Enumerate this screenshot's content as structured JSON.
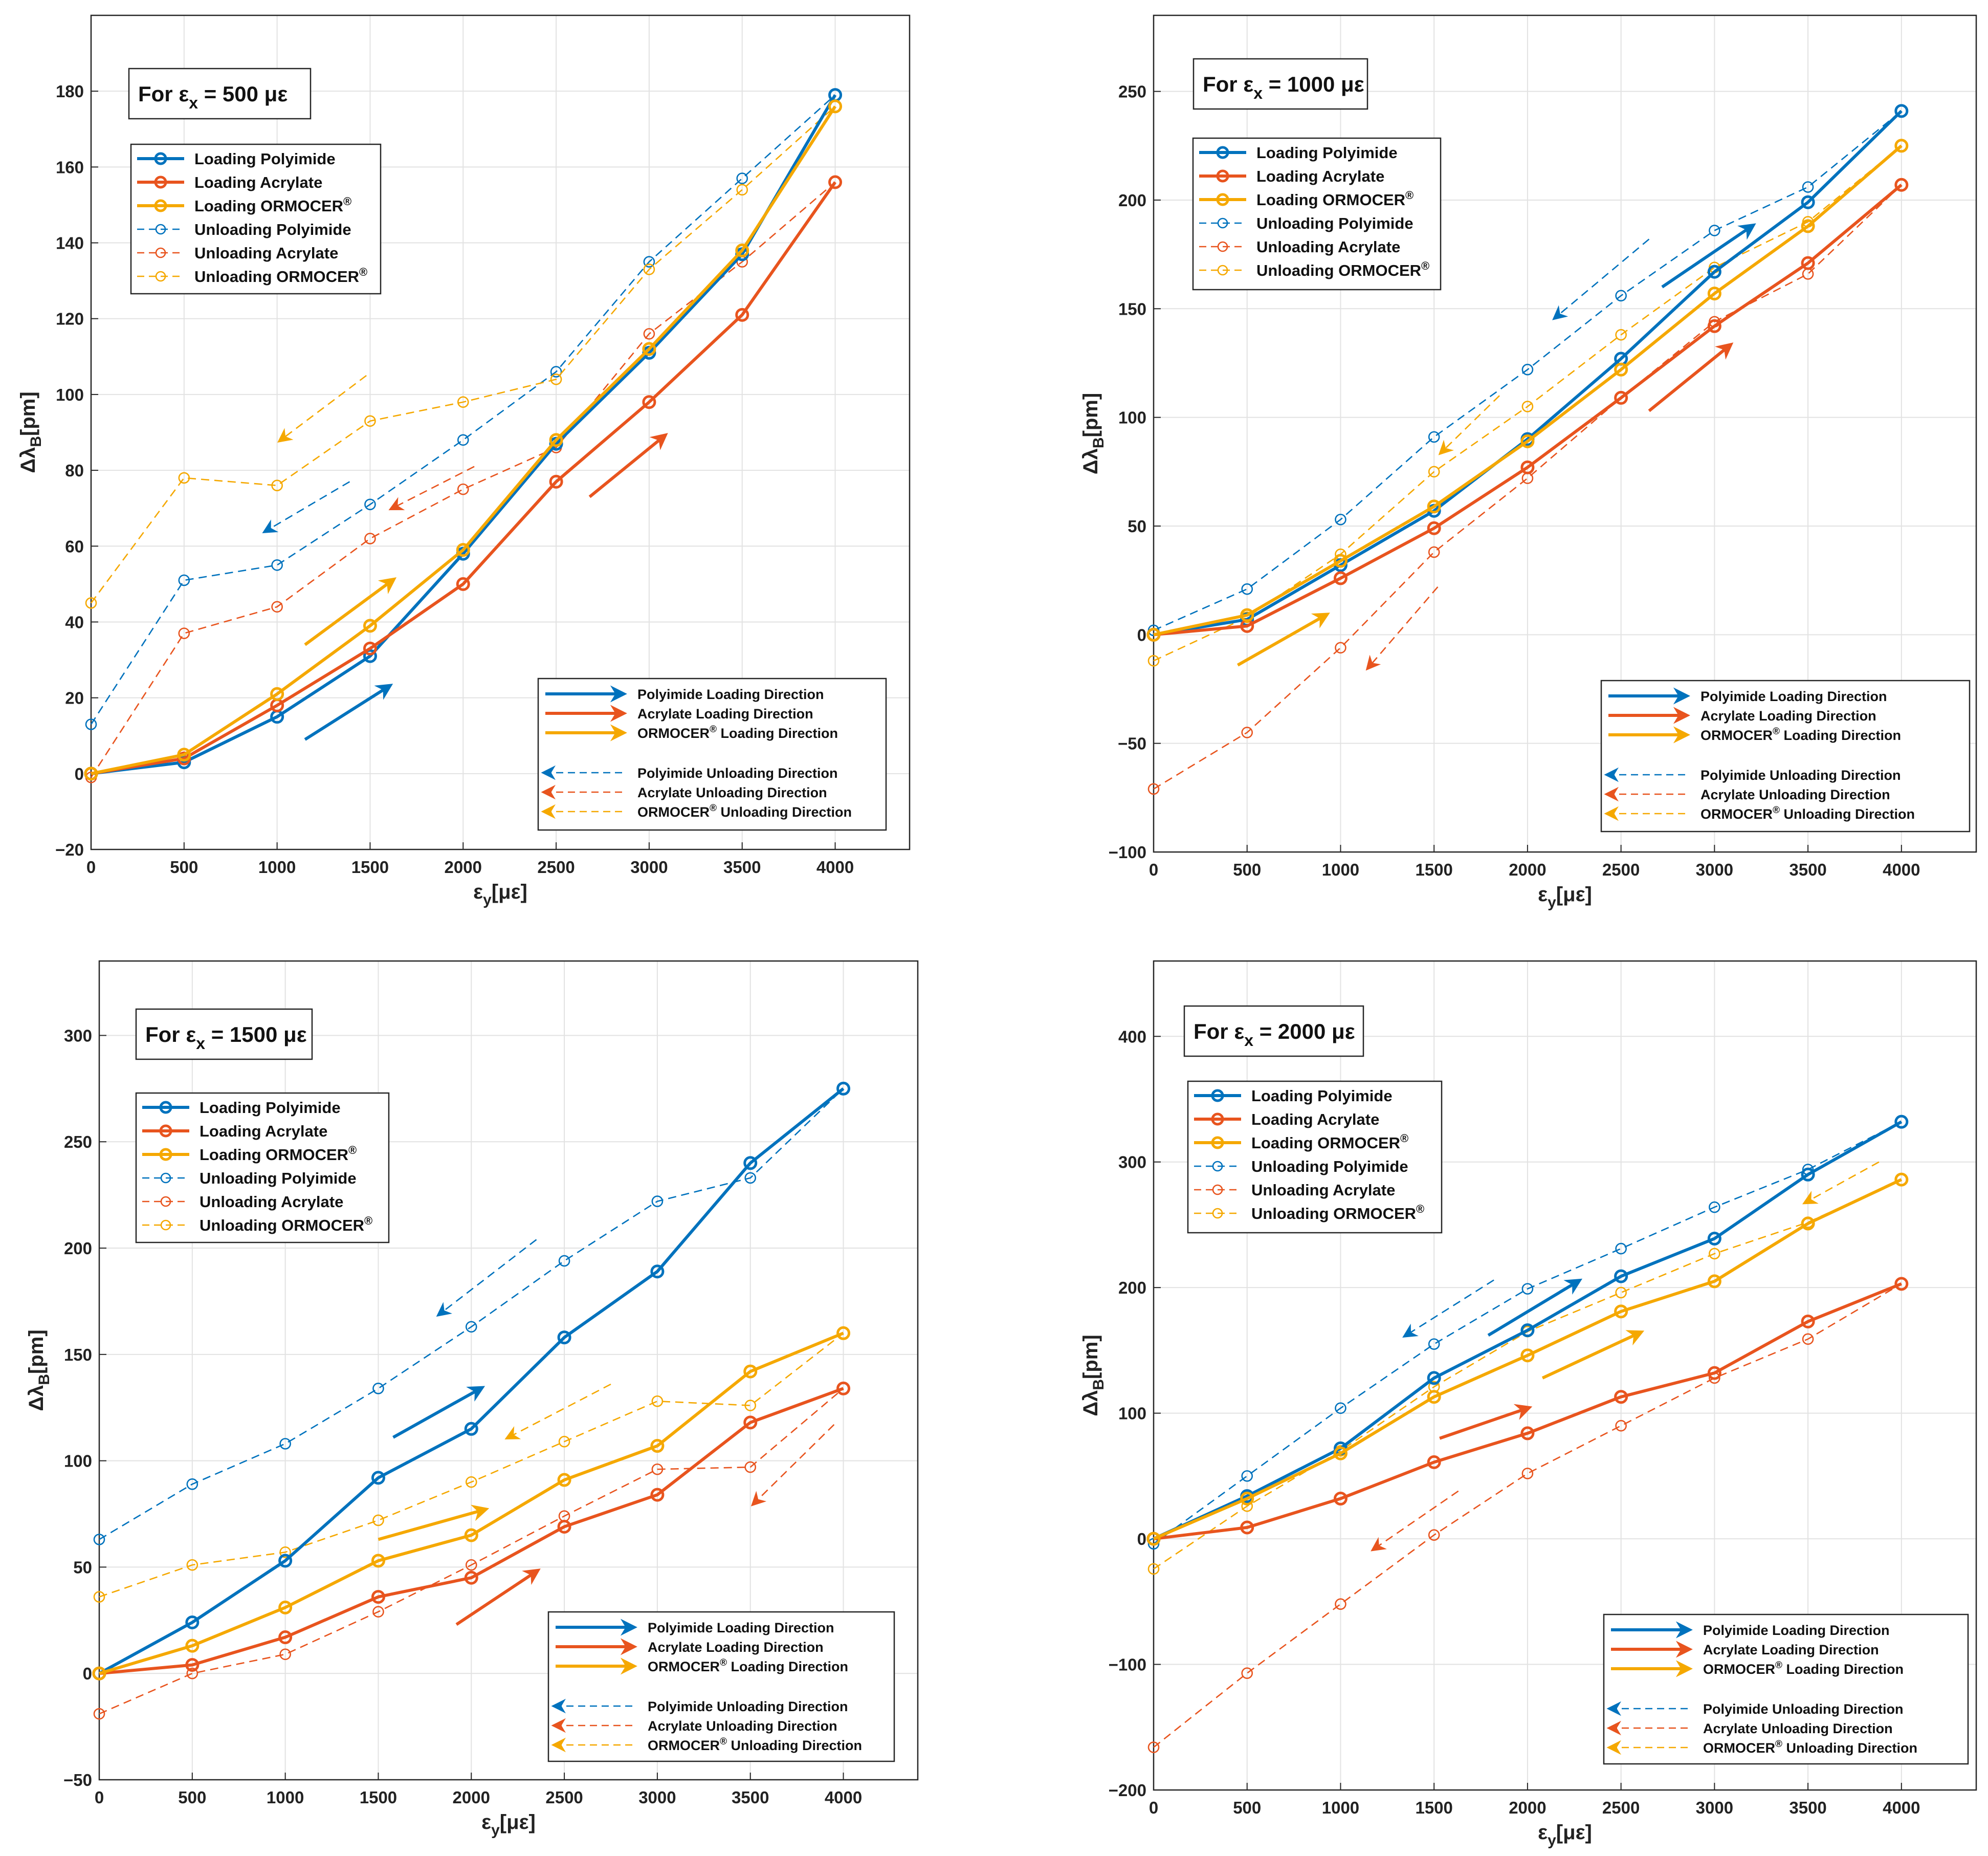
{
  "figure_caption": "",
  "colors": {
    "polyimide": "#0072BD",
    "acrylate": "#E8541E",
    "ormocer": "#F5A800",
    "grid": "#e2e2e2",
    "axis": "#262626"
  },
  "legend_labels": [
    "Loading Polyimide",
    "Loading Acrylate",
    "Loading ORMOCER",
    "Unloading Polyimide",
    "Unloading Acrylate",
    "Unloading ORMOCER"
  ],
  "direction_labels": [
    "Polyimide Loading Direction",
    "Acrylate Loading Direction",
    "ORMOCER Loading Direction",
    "Polyimide Unloading Direction",
    "Acrylate Unloading Direction",
    "ORMOCER Unloading Direction"
  ],
  "registered_mark": "®",
  "chart_data": [
    {
      "type": "line",
      "title_prefix": "For ε",
      "title_sub": "x",
      "title_suffix": " = 500 με",
      "xlabel_main": "ε",
      "xlabel_sub": "y",
      "xlabel_unit": "[με]",
      "ylabel_main": "Δλ",
      "ylabel_sub": "B",
      "ylabel_unit": "[pm]",
      "x": [
        0,
        500,
        1000,
        1500,
        2000,
        2500,
        3000,
        3500,
        4000
      ],
      "xlim": [
        0,
        4400
      ],
      "ylim": [
        -20,
        200
      ],
      "xticks": [
        0,
        500,
        1000,
        1500,
        2000,
        2500,
        3000,
        3500,
        4000
      ],
      "yticks": [
        -20,
        0,
        20,
        40,
        60,
        80,
        100,
        120,
        140,
        160,
        180
      ],
      "ytick_labels": [
        "−20",
        "0",
        "20",
        "40",
        "60",
        "80",
        "100",
        "120",
        "140",
        "160",
        "180"
      ],
      "grid": true,
      "series": [
        {
          "name": "Loading Polyimide",
          "values": [
            0,
            3,
            15,
            31,
            58,
            87,
            111,
            137,
            179
          ]
        },
        {
          "name": "Loading Acrylate",
          "values": [
            0,
            4,
            18,
            33,
            50,
            77,
            98,
            121,
            156
          ]
        },
        {
          "name": "Loading ORMOCER",
          "values": [
            0,
            5,
            21,
            39,
            59,
            88,
            112,
            138,
            176
          ]
        },
        {
          "name": "Unloading Polyimide",
          "values": [
            13,
            51,
            55,
            71,
            88,
            106,
            135,
            157,
            179
          ]
        },
        {
          "name": "Unloading Acrylate",
          "values": [
            -1,
            37,
            44,
            62,
            75,
            86,
            116,
            135,
            156
          ]
        },
        {
          "name": "Unloading ORMOCER",
          "values": [
            45,
            78,
            76,
            93,
            98,
            104,
            133,
            154,
            176
          ]
        }
      ],
      "direction_arrows": [
        {
          "series": "polyimide",
          "kind": "loading",
          "from": [
            1150,
            9
          ],
          "to": [
            1600,
            23
          ]
        },
        {
          "series": "acrylate",
          "kind": "loading",
          "from": [
            2680,
            73
          ],
          "to": [
            3080,
            89
          ]
        },
        {
          "series": "ormocer",
          "kind": "loading",
          "from": [
            1150,
            34
          ],
          "to": [
            1620,
            51
          ]
        },
        {
          "series": "polyimide",
          "kind": "unloading",
          "from": [
            1390,
            77
          ],
          "to": [
            940,
            64
          ]
        },
        {
          "series": "acrylate",
          "kind": "unloading",
          "from": [
            2060,
            81
          ],
          "to": [
            1620,
            70
          ]
        },
        {
          "series": "ormocer",
          "kind": "unloading",
          "from": [
            1480,
            105
          ],
          "to": [
            1020,
            88
          ]
        }
      ]
    },
    {
      "type": "line",
      "title_prefix": "For ε",
      "title_sub": "x",
      "title_suffix": " = 1000 με",
      "xlabel_main": "ε",
      "xlabel_sub": "y",
      "xlabel_unit": "[με]",
      "ylabel_main": "Δλ",
      "ylabel_sub": "B",
      "ylabel_unit": "[pm]",
      "x": [
        0,
        500,
        1000,
        1500,
        2000,
        2500,
        3000,
        3500,
        4000
      ],
      "xlim": [
        0,
        4400
      ],
      "ylim": [
        -100,
        285
      ],
      "xticks": [
        0,
        500,
        1000,
        1500,
        2000,
        2500,
        3000,
        3500,
        4000
      ],
      "yticks": [
        -100,
        -50,
        0,
        50,
        100,
        150,
        200,
        250
      ],
      "ytick_labels": [
        "−100",
        "−50",
        "0",
        "50",
        "100",
        "150",
        "200",
        "250"
      ],
      "grid": true,
      "series": [
        {
          "name": "Loading Polyimide",
          "values": [
            0,
            7,
            32,
            57,
            90,
            127,
            167,
            199,
            241
          ]
        },
        {
          "name": "Loading Acrylate",
          "values": [
            0,
            4,
            26,
            49,
            77,
            109,
            142,
            171,
            207
          ]
        },
        {
          "name": "Loading ORMOCER",
          "values": [
            0,
            9,
            34,
            59,
            89,
            122,
            157,
            188,
            225
          ]
        },
        {
          "name": "Unloading Polyimide",
          "values": [
            2,
            21,
            53,
            91,
            122,
            156,
            186,
            206,
            241
          ]
        },
        {
          "name": "Unloading Acrylate",
          "values": [
            -71,
            -45,
            -6,
            38,
            72,
            109,
            144,
            166,
            207
          ]
        },
        {
          "name": "Unloading ORMOCER",
          "values": [
            -12,
            8,
            37,
            75,
            105,
            138,
            169,
            190,
            225
          ]
        }
      ],
      "direction_arrows": [
        {
          "series": "polyimide",
          "kind": "loading",
          "from": [
            2720,
            160
          ],
          "to": [
            3200,
            188
          ]
        },
        {
          "series": "acrylate",
          "kind": "loading",
          "from": [
            2650,
            103
          ],
          "to": [
            3080,
            133
          ]
        },
        {
          "series": "ormocer",
          "kind": "loading",
          "from": [
            450,
            -14
          ],
          "to": [
            920,
            9
          ]
        },
        {
          "series": "polyimide",
          "kind": "unloading",
          "from": [
            2650,
            182
          ],
          "to": [
            2150,
            146
          ]
        },
        {
          "series": "acrylate",
          "kind": "unloading",
          "from": [
            1520,
            22
          ],
          "to": [
            1150,
            -15
          ]
        },
        {
          "series": "ormocer",
          "kind": "unloading",
          "from": [
            1850,
            110
          ],
          "to": [
            1540,
            84
          ]
        }
      ]
    },
    {
      "type": "line",
      "title_prefix": "For ε",
      "title_sub": "x",
      "title_suffix": " = 1500 με",
      "xlabel_main": "ε",
      "xlabel_sub": "y",
      "xlabel_unit": "[με]",
      "ylabel_main": "Δλ",
      "ylabel_sub": "B",
      "ylabel_unit": "[pm]",
      "x": [
        0,
        500,
        1000,
        1500,
        2000,
        2500,
        3000,
        3500,
        4000
      ],
      "xlim": [
        0,
        4400
      ],
      "ylim": [
        -50,
        335
      ],
      "xticks": [
        0,
        500,
        1000,
        1500,
        2000,
        2500,
        3000,
        3500,
        4000
      ],
      "yticks": [
        -50,
        0,
        50,
        100,
        150,
        200,
        250,
        300
      ],
      "ytick_labels": [
        "−50",
        "0",
        "50",
        "100",
        "150",
        "200",
        "250",
        "300"
      ],
      "grid": true,
      "series": [
        {
          "name": "Loading Polyimide",
          "values": [
            0,
            24,
            53,
            92,
            115,
            158,
            189,
            240,
            275
          ]
        },
        {
          "name": "Loading Acrylate",
          "values": [
            0,
            4,
            17,
            36,
            45,
            69,
            84,
            118,
            134
          ]
        },
        {
          "name": "Loading ORMOCER",
          "values": [
            0,
            13,
            31,
            53,
            65,
            91,
            107,
            142,
            160
          ]
        },
        {
          "name": "Unloading Polyimide",
          "values": [
            63,
            89,
            108,
            134,
            163,
            194,
            222,
            233,
            275
          ]
        },
        {
          "name": "Unloading Acrylate",
          "values": [
            -19,
            0,
            9,
            29,
            51,
            74,
            96,
            97,
            134
          ]
        },
        {
          "name": "Unloading ORMOCER",
          "values": [
            36,
            51,
            57,
            72,
            90,
            109,
            128,
            126,
            160
          ]
        }
      ],
      "direction_arrows": [
        {
          "series": "polyimide",
          "kind": "loading",
          "from": [
            1580,
            111
          ],
          "to": [
            2050,
            134
          ]
        },
        {
          "series": "acrylate",
          "kind": "loading",
          "from": [
            1920,
            23
          ],
          "to": [
            2350,
            48
          ]
        },
        {
          "series": "ormocer",
          "kind": "loading",
          "from": [
            1500,
            63
          ],
          "to": [
            2070,
            77
          ]
        },
        {
          "series": "polyimide",
          "kind": "unloading",
          "from": [
            2350,
            204
          ],
          "to": [
            1830,
            169
          ]
        },
        {
          "series": "acrylate",
          "kind": "unloading",
          "from": [
            3950,
            117
          ],
          "to": [
            3520,
            80
          ]
        },
        {
          "series": "ormocer",
          "kind": "unloading",
          "from": [
            2750,
            136
          ],
          "to": [
            2200,
            111
          ]
        }
      ]
    },
    {
      "type": "line",
      "title_prefix": "For ε",
      "title_sub": "x",
      "title_suffix": " = 2000 με",
      "xlabel_main": "ε",
      "xlabel_sub": "y",
      "xlabel_unit": "[με]",
      "ylabel_main": "Δλ",
      "ylabel_sub": "B",
      "ylabel_unit": "[pm]",
      "x": [
        0,
        500,
        1000,
        1500,
        2000,
        2500,
        3000,
        3500,
        4000
      ],
      "xlim": [
        0,
        4400
      ],
      "ylim": [
        -200,
        460
      ],
      "xticks": [
        0,
        500,
        1000,
        1500,
        2000,
        2500,
        3000,
        3500,
        4000
      ],
      "yticks": [
        -200,
        -100,
        0,
        100,
        200,
        300,
        400
      ],
      "ytick_labels": [
        "−200",
        "−100",
        "0",
        "100",
        "200",
        "300",
        "400"
      ],
      "grid": true,
      "series": [
        {
          "name": "Loading Polyimide",
          "values": [
            0,
            34,
            72,
            128,
            166,
            209,
            239,
            290,
            332
          ]
        },
        {
          "name": "Loading Acrylate",
          "values": [
            0,
            9,
            32,
            61,
            84,
            113,
            132,
            173,
            203
          ]
        },
        {
          "name": "Loading ORMOCER",
          "values": [
            0,
            32,
            68,
            113,
            146,
            181,
            205,
            251,
            286
          ]
        },
        {
          "name": "Unloading Polyimide",
          "values": [
            -4,
            50,
            104,
            155,
            199,
            231,
            264,
            294,
            332
          ]
        },
        {
          "name": "Unloading Acrylate",
          "values": [
            -166,
            -107,
            -52,
            3,
            52,
            90,
            128,
            159,
            203
          ]
        },
        {
          "name": "Unloading ORMOCER",
          "values": [
            -24,
            26,
            70,
            121,
            165,
            196,
            227,
            252,
            286
          ]
        }
      ],
      "direction_arrows": [
        {
          "series": "polyimide",
          "kind": "loading",
          "from": [
            1790,
            162
          ],
          "to": [
            2270,
            205
          ]
        },
        {
          "series": "acrylate",
          "kind": "loading",
          "from": [
            1530,
            80
          ],
          "to": [
            2000,
            104
          ]
        },
        {
          "series": "ormocer",
          "kind": "loading",
          "from": [
            2080,
            128
          ],
          "to": [
            2600,
            164
          ]
        },
        {
          "series": "polyimide",
          "kind": "unloading",
          "from": [
            1820,
            206
          ],
          "to": [
            1350,
            162
          ]
        },
        {
          "series": "acrylate",
          "kind": "unloading",
          "from": [
            1630,
            38
          ],
          "to": [
            1180,
            -8
          ]
        },
        {
          "series": "ormocer",
          "kind": "unloading",
          "from": [
            3880,
            300
          ],
          "to": [
            3490,
            268
          ]
        }
      ]
    }
  ]
}
